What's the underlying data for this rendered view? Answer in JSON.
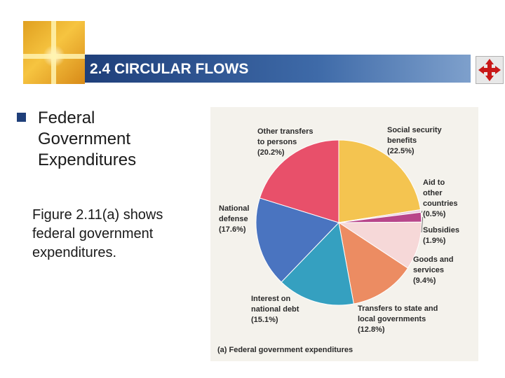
{
  "slide": {
    "title": "2.4 CIRCULAR FLOWS",
    "heading_lines": [
      "Federal",
      "Government",
      "Expenditures"
    ],
    "body_lines": [
      "Figure 2.11(a) shows",
      "federal government",
      "expenditures."
    ]
  },
  "icons": {
    "logo": "cross-logo",
    "nav": "four-way-arrows-icon"
  },
  "chart_data": {
    "type": "pie",
    "title": "",
    "caption": "(a) Federal government expenditures",
    "slices": [
      {
        "label_lines": [
          "Social security",
          "benefits",
          "(22.5%)"
        ],
        "value": 22.5,
        "color": "#f4c450"
      },
      {
        "label_lines": [
          "Aid to",
          "other",
          "countries",
          "(0.5%)"
        ],
        "value": 0.5,
        "color": "#e8cfe0"
      },
      {
        "label_lines": [
          "Subsidies",
          "(1.9%)"
        ],
        "value": 1.9,
        "color": "#b8468a"
      },
      {
        "label_lines": [
          "Goods and",
          "services",
          "(9.4%)"
        ],
        "value": 9.4,
        "color": "#f6d8d8"
      },
      {
        "label_lines": [
          "Transfers to state and",
          "local governments",
          "(12.8%)"
        ],
        "value": 12.8,
        "color": "#ec8c62"
      },
      {
        "label_lines": [
          "Interest on",
          "national debt",
          "(15.1%)"
        ],
        "value": 15.1,
        "color": "#35a0c0"
      },
      {
        "label_lines": [
          "National",
          "defense",
          "(17.6%)"
        ],
        "value": 17.6,
        "color": "#4a74c0"
      },
      {
        "label_lines": [
          "Other transfers",
          "to persons",
          "(20.2%)"
        ],
        "value": 20.2,
        "color": "#e8506a"
      }
    ]
  }
}
